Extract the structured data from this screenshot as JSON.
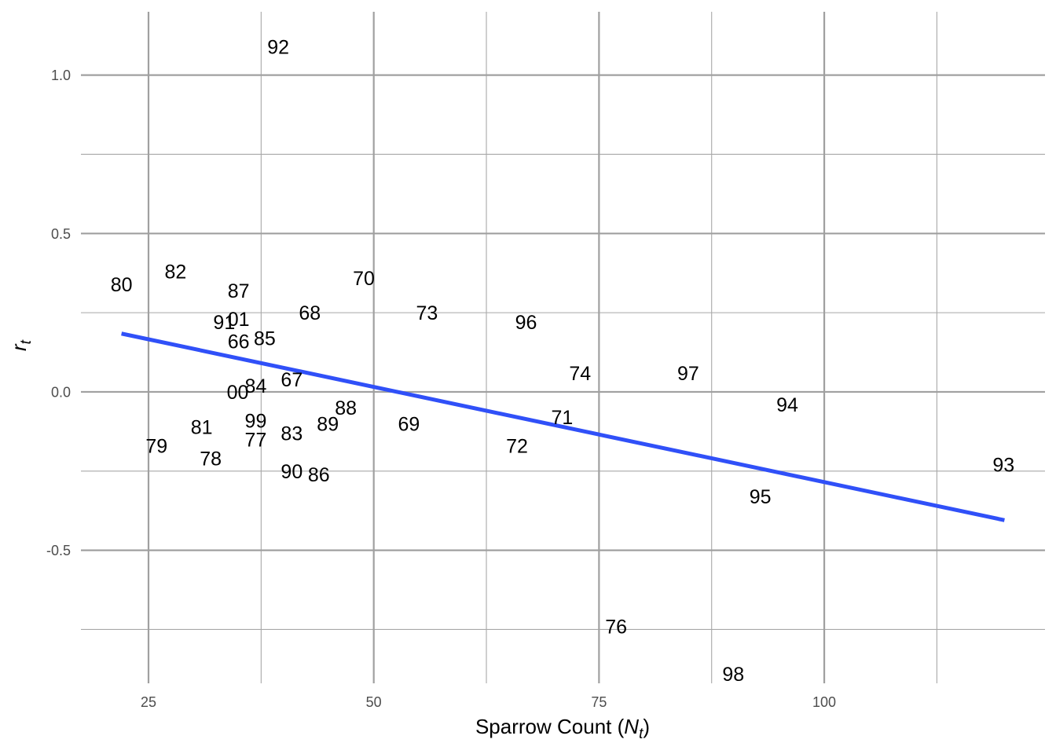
{
  "chart_data": {
    "type": "scatter",
    "xlabel": "Sparrow Count",
    "xlabel_math": "N",
    "xlabel_math_sub": "t",
    "ylabel_math": "r",
    "ylabel_math_sub": "t",
    "xlim": [
      17.5,
      124.5
    ],
    "ylim": [
      -0.92,
      1.2
    ],
    "x_ticks": [
      25,
      50,
      75,
      100
    ],
    "x_tick_labels": [
      "25",
      "50",
      "75",
      "100"
    ],
    "y_ticks": [
      1.0,
      0.5,
      0.0,
      -0.5
    ],
    "y_tick_labels": [
      "1.0",
      "0.5",
      "0.0",
      "-0.5"
    ],
    "x_minor_ticks": [
      37.5,
      62.5,
      87.5,
      112.5
    ],
    "y_minor_ticks": [
      0.75,
      0.25,
      -0.25,
      -0.75
    ],
    "grid": true,
    "points": [
      {
        "label": "92",
        "x": 39.4,
        "y": 1.09
      },
      {
        "label": "80",
        "x": 22.0,
        "y": 0.34
      },
      {
        "label": "82",
        "x": 28.0,
        "y": 0.38
      },
      {
        "label": "87",
        "x": 35.0,
        "y": 0.32
      },
      {
        "label": "70",
        "x": 48.9,
        "y": 0.36
      },
      {
        "label": "91",
        "x": 33.4,
        "y": 0.22
      },
      {
        "label": "01",
        "x": 35.0,
        "y": 0.23
      },
      {
        "label": "68",
        "x": 42.9,
        "y": 0.25
      },
      {
        "label": "73",
        "x": 55.9,
        "y": 0.25
      },
      {
        "label": "96",
        "x": 66.9,
        "y": 0.22
      },
      {
        "label": "66",
        "x": 35.0,
        "y": 0.16
      },
      {
        "label": "85",
        "x": 37.9,
        "y": 0.17
      },
      {
        "label": "74",
        "x": 72.9,
        "y": 0.06
      },
      {
        "label": "97",
        "x": 84.9,
        "y": 0.06
      },
      {
        "label": "67",
        "x": 40.9,
        "y": 0.04
      },
      {
        "label": "84",
        "x": 36.9,
        "y": 0.02
      },
      {
        "label": "00",
        "x": 34.9,
        "y": 0.0
      },
      {
        "label": "94",
        "x": 95.9,
        "y": -0.04
      },
      {
        "label": "88",
        "x": 46.9,
        "y": -0.05
      },
      {
        "label": "71",
        "x": 70.9,
        "y": -0.08
      },
      {
        "label": "81",
        "x": 30.9,
        "y": -0.11
      },
      {
        "label": "99",
        "x": 36.9,
        "y": -0.09
      },
      {
        "label": "89",
        "x": 44.9,
        "y": -0.1
      },
      {
        "label": "69",
        "x": 53.9,
        "y": -0.1
      },
      {
        "label": "83",
        "x": 40.9,
        "y": -0.13
      },
      {
        "label": "77",
        "x": 36.9,
        "y": -0.15
      },
      {
        "label": "79",
        "x": 25.9,
        "y": -0.17
      },
      {
        "label": "72",
        "x": 65.9,
        "y": -0.17
      },
      {
        "label": "78",
        "x": 31.9,
        "y": -0.21
      },
      {
        "label": "90",
        "x": 40.9,
        "y": -0.25
      },
      {
        "label": "86",
        "x": 43.9,
        "y": -0.26
      },
      {
        "label": "93",
        "x": 119.9,
        "y": -0.23
      },
      {
        "label": "95",
        "x": 92.9,
        "y": -0.33
      },
      {
        "label": "76",
        "x": 76.9,
        "y": -0.74
      },
      {
        "label": "98",
        "x": 89.9,
        "y": -0.89
      }
    ],
    "regression_line": {
      "x": [
        22.0,
        120.0
      ],
      "y": [
        0.184,
        -0.405
      ]
    },
    "line_color": "#3050F8"
  }
}
